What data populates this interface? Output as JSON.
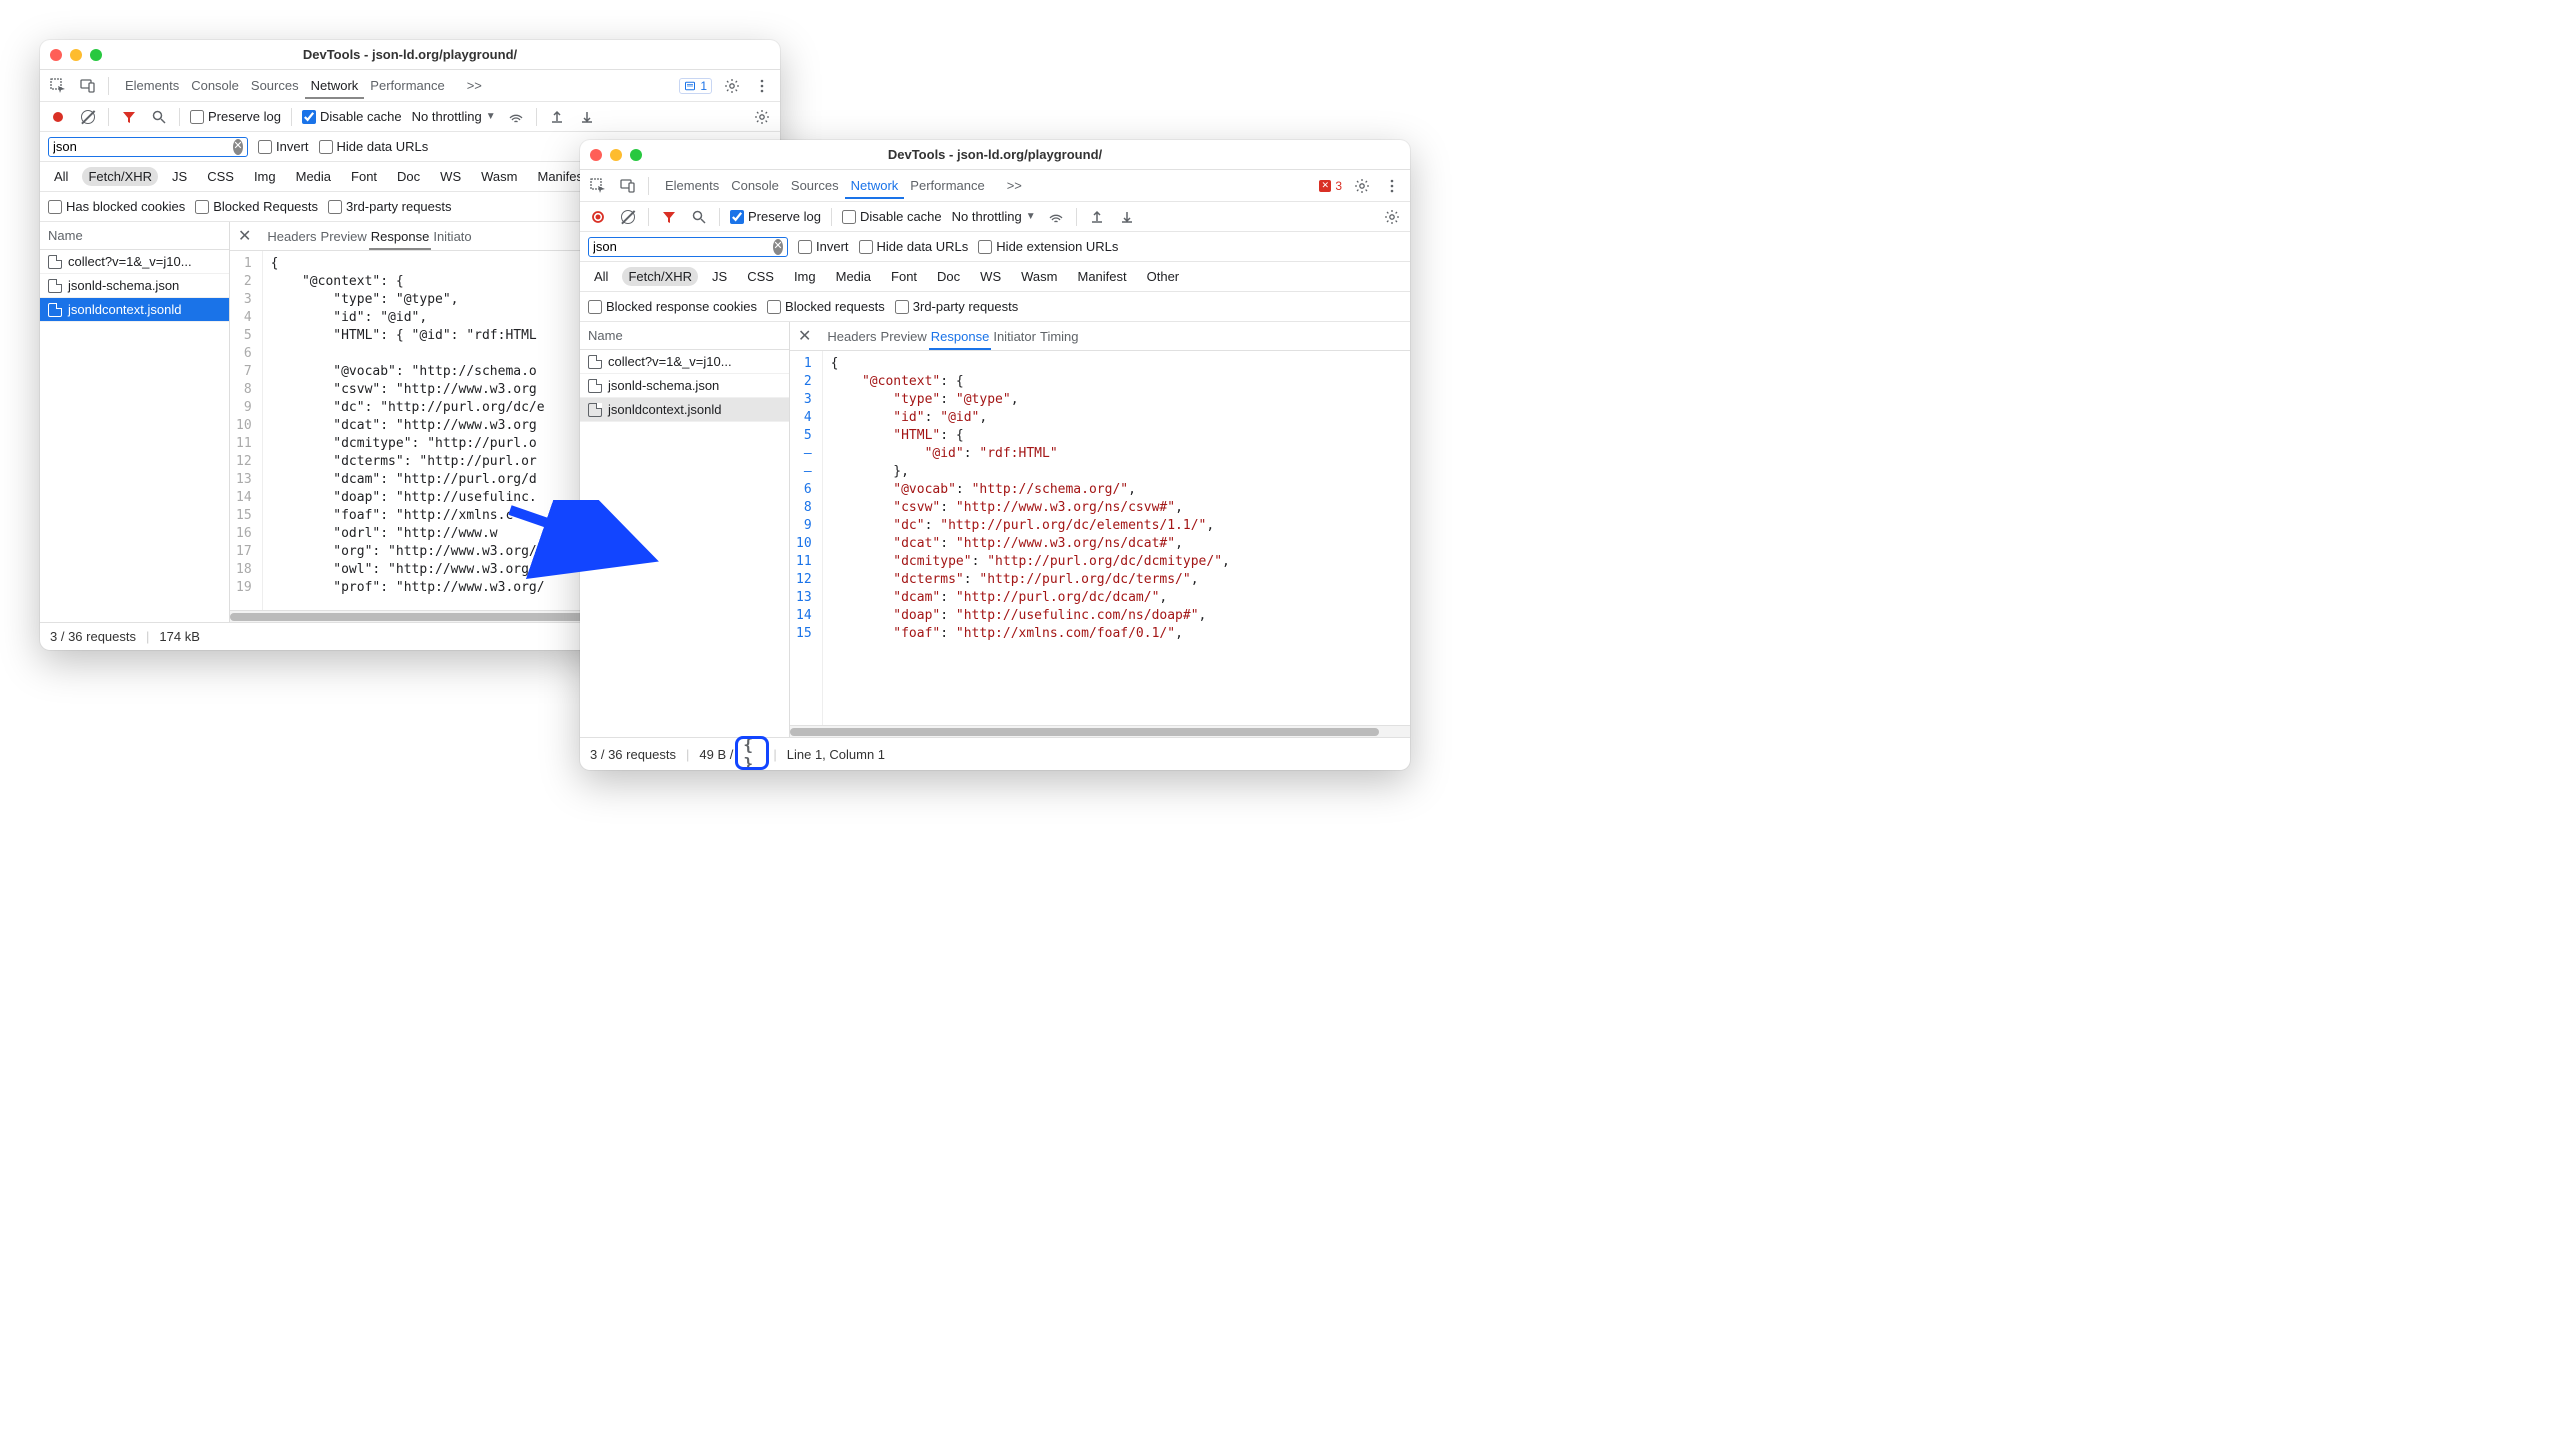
{
  "window1": {
    "title": "DevTools - json-ld.org/playground/",
    "tabs": [
      "Elements",
      "Console",
      "Sources",
      "Network",
      "Performance"
    ],
    "tabs_active": "Network",
    "more_indicator": ">>",
    "issues_badge_count": 1,
    "toolbar": {
      "preserve_log_label": "Preserve log",
      "preserve_log_checked": false,
      "disable_cache_label": "Disable cache",
      "disable_cache_checked": true,
      "throttling_label": "No throttling"
    },
    "filter": {
      "value": "json",
      "invert_label": "Invert",
      "hide_data_urls_label": "Hide data URLs"
    },
    "types": [
      "All",
      "Fetch/XHR",
      "JS",
      "CSS",
      "Img",
      "Media",
      "Font",
      "Doc",
      "WS",
      "Wasm",
      "Manifest"
    ],
    "types_selected": "Fetch/XHR",
    "extra_filters": {
      "blocked_cookies_label": "Has blocked cookies",
      "blocked_requests_label": "Blocked Requests",
      "third_party_label": "3rd-party requests"
    },
    "name_header": "Name",
    "requests": [
      {
        "name": "collect?v=1&_v=j10...",
        "selected": false
      },
      {
        "name": "jsonld-schema.json",
        "selected": false
      },
      {
        "name": "jsonldcontext.jsonld",
        "selected": "blue"
      }
    ],
    "detail_tabs": [
      "Headers",
      "Preview",
      "Response",
      "Initiato"
    ],
    "detail_active": "Response",
    "code_lines": [
      "{",
      "    \"@context\": {",
      "        \"type\": \"@type\",",
      "        \"id\": \"@id\",",
      "        \"HTML\": { \"@id\": \"rdf:HTML",
      "",
      "        \"@vocab\": \"http://schema.o",
      "        \"csvw\": \"http://www.w3.org",
      "        \"dc\": \"http://purl.org/dc/e",
      "        \"dcat\": \"http://www.w3.org",
      "        \"dcmitype\": \"http://purl.o",
      "        \"dcterms\": \"http://purl.or",
      "        \"dcam\": \"http://purl.org/d",
      "        \"doap\": \"http://usefulinc.",
      "        \"foaf\": \"http://xmlns.c",
      "        \"odrl\": \"http://www.w",
      "        \"org\": \"http://www.w3.org/n",
      "        \"owl\": \"http://www.w3.org/2",
      "        \"prof\": \"http://www.w3.org/"
    ],
    "status": {
      "requests": "3 / 36 requests",
      "size": "174 kB"
    }
  },
  "window2": {
    "title": "DevTools - json-ld.org/playground/",
    "tabs": [
      "Elements",
      "Console",
      "Sources",
      "Network",
      "Performance"
    ],
    "tabs_active": "Network",
    "more_indicator": ">>",
    "error_badge_count": 3,
    "toolbar": {
      "preserve_log_label": "Preserve log",
      "preserve_log_checked": true,
      "disable_cache_label": "Disable cache",
      "disable_cache_checked": false,
      "throttling_label": "No throttling"
    },
    "filter": {
      "value": "json",
      "invert_label": "Invert",
      "hide_data_urls_label": "Hide data URLs",
      "hide_ext_urls_label": "Hide extension URLs"
    },
    "types": [
      "All",
      "Fetch/XHR",
      "JS",
      "CSS",
      "Img",
      "Media",
      "Font",
      "Doc",
      "WS",
      "Wasm",
      "Manifest",
      "Other"
    ],
    "types_selected": "Fetch/XHR",
    "extra_filters": {
      "blocked_cookies_label": "Blocked response cookies",
      "blocked_requests_label": "Blocked requests",
      "third_party_label": "3rd-party requests"
    },
    "name_header": "Name",
    "requests": [
      {
        "name": "collect?v=1&_v=j10...",
        "selected": false
      },
      {
        "name": "jsonld-schema.json",
        "selected": false
      },
      {
        "name": "jsonldcontext.jsonld",
        "selected": "gray"
      }
    ],
    "detail_tabs": [
      "Headers",
      "Preview",
      "Response",
      "Initiator",
      "Timing"
    ],
    "detail_active": "Response",
    "code_gutter": [
      "1",
      "2",
      "3",
      "4",
      "5",
      "–",
      "–",
      "6",
      "8",
      "9",
      "10",
      "11",
      "12",
      "13",
      "14",
      "15"
    ],
    "code_lines_tokens": [
      [
        [
          "pun",
          "{"
        ]
      ],
      [
        [
          "pun",
          "    "
        ],
        [
          "key",
          "\"@context\""
        ],
        [
          "pun",
          ": {"
        ]
      ],
      [
        [
          "pun",
          "        "
        ],
        [
          "key",
          "\"type\""
        ],
        [
          "pun",
          ": "
        ],
        [
          "str",
          "\"@type\""
        ],
        [
          "pun",
          ","
        ]
      ],
      [
        [
          "pun",
          "        "
        ],
        [
          "key",
          "\"id\""
        ],
        [
          "pun",
          ": "
        ],
        [
          "str",
          "\"@id\""
        ],
        [
          "pun",
          ","
        ]
      ],
      [
        [
          "pun",
          "        "
        ],
        [
          "key",
          "\"HTML\""
        ],
        [
          "pun",
          ": {"
        ]
      ],
      [
        [
          "pun",
          "            "
        ],
        [
          "key",
          "\"@id\""
        ],
        [
          "pun",
          ": "
        ],
        [
          "str",
          "\"rdf:HTML\""
        ]
      ],
      [
        [
          "pun",
          "        },"
        ]
      ],
      [
        [
          "pun",
          "        "
        ],
        [
          "key",
          "\"@vocab\""
        ],
        [
          "pun",
          ": "
        ],
        [
          "str",
          "\"http://schema.org/\""
        ],
        [
          "pun",
          ","
        ]
      ],
      [
        [
          "pun",
          "        "
        ],
        [
          "key",
          "\"csvw\""
        ],
        [
          "pun",
          ": "
        ],
        [
          "str",
          "\"http://www.w3.org/ns/csvw#\""
        ],
        [
          "pun",
          ","
        ]
      ],
      [
        [
          "pun",
          "        "
        ],
        [
          "key",
          "\"dc\""
        ],
        [
          "pun",
          ": "
        ],
        [
          "str",
          "\"http://purl.org/dc/elements/1.1/\""
        ],
        [
          "pun",
          ","
        ]
      ],
      [
        [
          "pun",
          "        "
        ],
        [
          "key",
          "\"dcat\""
        ],
        [
          "pun",
          ": "
        ],
        [
          "str",
          "\"http://www.w3.org/ns/dcat#\""
        ],
        [
          "pun",
          ","
        ]
      ],
      [
        [
          "pun",
          "        "
        ],
        [
          "key",
          "\"dcmitype\""
        ],
        [
          "pun",
          ": "
        ],
        [
          "str",
          "\"http://purl.org/dc/dcmitype/\""
        ],
        [
          "pun",
          ","
        ]
      ],
      [
        [
          "pun",
          "        "
        ],
        [
          "key",
          "\"dcterms\""
        ],
        [
          "pun",
          ": "
        ],
        [
          "str",
          "\"http://purl.org/dc/terms/\""
        ],
        [
          "pun",
          ","
        ]
      ],
      [
        [
          "pun",
          "        "
        ],
        [
          "key",
          "\"dcam\""
        ],
        [
          "pun",
          ": "
        ],
        [
          "str",
          "\"http://purl.org/dc/dcam/\""
        ],
        [
          "pun",
          ","
        ]
      ],
      [
        [
          "pun",
          "        "
        ],
        [
          "key",
          "\"doap\""
        ],
        [
          "pun",
          ": "
        ],
        [
          "str",
          "\"http://usefulinc.com/ns/doap#\""
        ],
        [
          "pun",
          ","
        ]
      ],
      [
        [
          "pun",
          "        "
        ],
        [
          "key",
          "\"foaf\""
        ],
        [
          "pun",
          ": "
        ],
        [
          "str",
          "\"http://xmlns.com/foaf/0.1/\""
        ],
        [
          "pun",
          ","
        ]
      ]
    ],
    "status": {
      "requests": "3 / 36 requests",
      "size": "49 B /",
      "cursor": "Line 1, Column 1"
    }
  },
  "colors": {
    "accent_blue": "#1a73e8",
    "error_red": "#d93025",
    "string_red": "#a31515",
    "text_gray": "#5f6368",
    "border_gray": "#e0e0e0",
    "arrow_blue": "#1245ff"
  }
}
